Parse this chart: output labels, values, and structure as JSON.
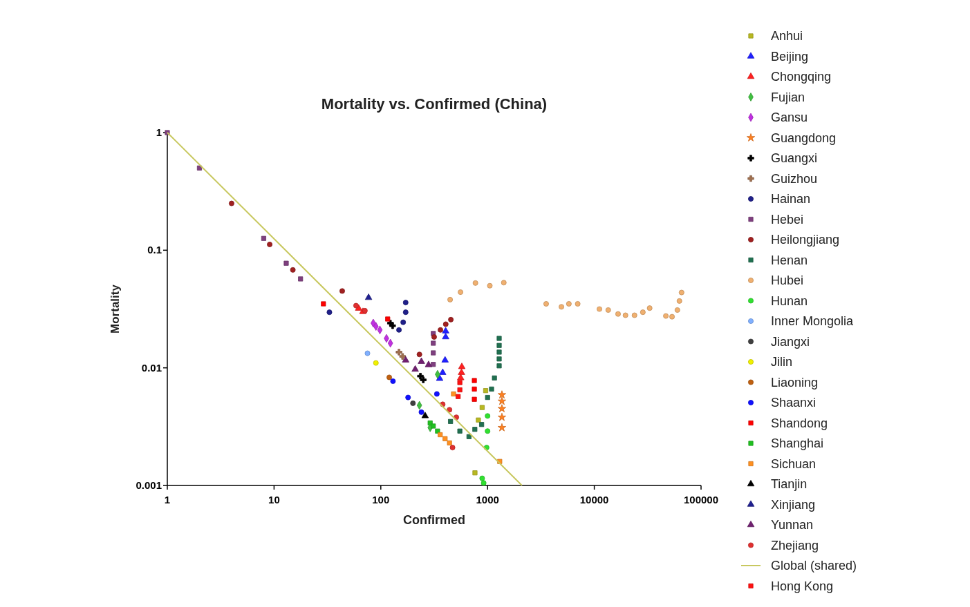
{
  "chart_data": {
    "type": "scatter",
    "title": "Mortality vs. Confirmed (China)",
    "xlabel": "Confirmed",
    "ylabel": "Mortality",
    "log": "xy",
    "grid": false,
    "legend": "right",
    "xlim": [
      1,
      100000
    ],
    "xticks": [
      1,
      10,
      100,
      1000,
      10000,
      100000
    ],
    "ylim": [
      0.001,
      1
    ],
    "yticks": [
      0.001,
      0.01,
      0.1,
      1
    ],
    "series": [
      {
        "name": "Anhui",
        "color": "#b8b820",
        "marker": "square",
        "x": [
          762,
          820,
          890,
          960
        ],
        "values": [
          0.00128,
          0.0036,
          0.0046,
          0.0064
        ]
      },
      {
        "name": "Beijing",
        "color": "#2020ff",
        "marker": "triangle",
        "x": [
          405,
          405,
          400,
          380,
          356
        ],
        "values": [
          0.0183,
          0.0205,
          0.0116,
          0.0091,
          0.0081
        ]
      },
      {
        "name": "Chongqing",
        "color": "#ff2020",
        "marker": "triangle",
        "x": [
          62,
          68,
          574,
          570,
          560
        ],
        "values": [
          0.032,
          0.03,
          0.0102,
          0.0091,
          0.0082
        ]
      },
      {
        "name": "Fujian",
        "color": "#40c040",
        "marker": "diamond",
        "x": [
          340,
          230,
          290
        ],
        "values": [
          0.0088,
          0.0048,
          0.0031
        ]
      },
      {
        "name": "Gansu",
        "color": "#c030e0",
        "marker": "diamond",
        "x": [
          85,
          90,
          98,
          113,
          123
        ],
        "values": [
          0.024,
          0.0225,
          0.021,
          0.0178,
          0.0162
        ]
      },
      {
        "name": "Guangdong",
        "color": "#ff8020",
        "marker": "star",
        "x": [
          1363,
          1363,
          1363,
          1363,
          1363
        ],
        "values": [
          0.0059,
          0.0052,
          0.0045,
          0.0038,
          0.0031
        ]
      },
      {
        "name": "Guangxi",
        "color": "#000000",
        "marker": "cross",
        "x": [
          123,
          129,
          235,
          250
        ],
        "values": [
          0.024,
          0.0228,
          0.0085,
          0.0079
        ]
      },
      {
        "name": "Guizhou",
        "color": "#a07050",
        "marker": "cross",
        "x": [
          148,
          160
        ],
        "values": [
          0.0136,
          0.0125
        ]
      },
      {
        "name": "Hainan",
        "color": "#20208a",
        "marker": "circle",
        "x": [
          171,
          171,
          162,
          148,
          33
        ],
        "values": [
          0.0359,
          0.0297,
          0.0244,
          0.021,
          0.0297
        ]
      },
      {
        "name": "Hebei",
        "color": "#7f3f7f",
        "marker": "square",
        "x": [
          1,
          2,
          8,
          13,
          17.7,
          310,
          310,
          310,
          310
        ],
        "values": [
          1,
          0.5,
          0.126,
          0.0775,
          0.057,
          0.0196,
          0.0162,
          0.0134,
          0.0107
        ]
      },
      {
        "name": "Heilongjiang",
        "color": "#a02020",
        "marker": "circle",
        "x": [
          4,
          9.1,
          15,
          43.5,
          230,
          316,
          362,
          406,
          453
        ],
        "values": [
          0.25,
          0.112,
          0.068,
          0.045,
          0.013,
          0.0183,
          0.021,
          0.0235,
          0.0257
        ]
      },
      {
        "name": "Henan",
        "color": "#207050",
        "marker": "square",
        "x": [
          1285,
          1285,
          1285,
          1285,
          1285,
          1160,
          1090,
          1000,
          880,
          760,
          670,
          550,
          450
        ],
        "values": [
          0.0178,
          0.0155,
          0.0136,
          0.0119,
          0.0104,
          0.0082,
          0.0066,
          0.0056,
          0.0033,
          0.003,
          0.0026,
          0.0029,
          0.0035
        ]
      },
      {
        "name": "Hubei",
        "color": "#f0b070",
        "marker": "circle",
        "x": [
          446,
          558,
          770,
          1050,
          1420,
          3540,
          4920,
          5780,
          6990,
          11170,
          13500,
          16700,
          19600,
          23800,
          28500,
          33000,
          46800,
          53500,
          60000,
          62700,
          65700
        ],
        "values": [
          0.038,
          0.044,
          0.0526,
          0.0499,
          0.053,
          0.035,
          0.033,
          0.035,
          0.035,
          0.0316,
          0.031,
          0.0287,
          0.028,
          0.028,
          0.0297,
          0.0322,
          0.0276,
          0.0272,
          0.031,
          0.037,
          0.0437
        ]
      },
      {
        "name": "Hunan",
        "color": "#30e030",
        "marker": "circle",
        "x": [
          1000,
          1000,
          980,
          890,
          920
        ],
        "values": [
          0.0039,
          0.0029,
          0.0021,
          0.00115,
          0.00105
        ]
      },
      {
        "name": "Inner Mongolia",
        "color": "#80b0ff",
        "marker": "circle",
        "x": [
          75
        ],
        "values": [
          0.0133
        ]
      },
      {
        "name": "Jiangxi",
        "color": "#404040",
        "marker": "circle",
        "x": [
          200
        ],
        "values": [
          0.005
        ]
      },
      {
        "name": "Jilin",
        "color": "#f0f000",
        "marker": "circle",
        "x": [
          90
        ],
        "values": [
          0.011
        ]
      },
      {
        "name": "Liaoning",
        "color": "#c06010",
        "marker": "circle",
        "x": [
          120
        ],
        "values": [
          0.0083
        ]
      },
      {
        "name": "Shaanxi",
        "color": "#1010ff",
        "marker": "circle",
        "x": [
          130,
          180,
          240,
          335
        ],
        "values": [
          0.0077,
          0.0056,
          0.0042,
          0.006
        ]
      },
      {
        "name": "Shandong",
        "color": "#ff0000",
        "marker": "square",
        "x": [
          752,
          752,
          752,
          29,
          116
        ],
        "values": [
          0.0078,
          0.0066,
          0.0054,
          0.035,
          0.026
        ]
      },
      {
        "name": "Shanghai",
        "color": "#20c020",
        "marker": "square",
        "x": [
          290,
          310,
          340
        ],
        "values": [
          0.0034,
          0.0032,
          0.0029
        ]
      },
      {
        "name": "Sichuan",
        "color": "#ff9020",
        "marker": "square",
        "x": [
          360,
          400,
          440,
          1300,
          480
        ],
        "values": [
          0.0027,
          0.0025,
          0.0023,
          0.0016,
          0.006
        ]
      },
      {
        "name": "Tianjin",
        "color": "#000000",
        "marker": "triangle",
        "x": [
          260
        ],
        "values": [
          0.0039
        ]
      },
      {
        "name": "Xinjiang",
        "color": "#202090",
        "marker": "triangle",
        "x": [
          76.8
        ],
        "values": [
          0.0395
        ]
      },
      {
        "name": "Yunnan",
        "color": "#702070",
        "marker": "triangle",
        "x": [
          171,
          240,
          280,
          210
        ],
        "values": [
          0.0116,
          0.0113,
          0.0106,
          0.0097
        ]
      },
      {
        "name": "Zhejiang",
        "color": "#e03030",
        "marker": "circle",
        "x": [
          58.6,
          71,
          380,
          440,
          510,
          470
        ],
        "values": [
          0.0338,
          0.0306,
          0.0049,
          0.0044,
          0.0038,
          0.0021
        ]
      },
      {
        "name": "Global (shared)",
        "type": "line",
        "color": "#c8c860",
        "marker": "none",
        "x": [
          1,
          2100
        ],
        "values": [
          1,
          0.001
        ]
      },
      {
        "name": "Hong Kong",
        "color": "#ff1010",
        "marker": "square",
        "x": [
          550,
          550,
          530
        ],
        "values": [
          0.0075,
          0.0065,
          0.0057
        ]
      }
    ]
  }
}
